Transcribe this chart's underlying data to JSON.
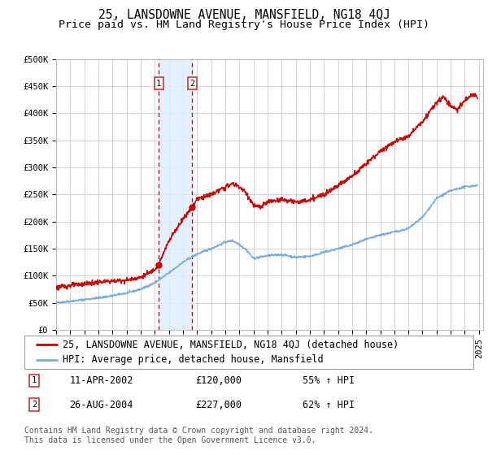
{
  "title": "25, LANSDOWNE AVENUE, MANSFIELD, NG18 4QJ",
  "subtitle": "Price paid vs. HM Land Registry's House Price Index (HPI)",
  "ylim": [
    0,
    500000
  ],
  "yticks": [
    0,
    50000,
    100000,
    150000,
    200000,
    250000,
    300000,
    350000,
    400000,
    450000,
    500000
  ],
  "ytick_labels": [
    "£0",
    "£50K",
    "£100K",
    "£150K",
    "£200K",
    "£250K",
    "£300K",
    "£350K",
    "£400K",
    "£450K",
    "£500K"
  ],
  "xlim_start": 1995.0,
  "xlim_end": 2025.3,
  "xticks": [
    1995,
    1996,
    1997,
    1998,
    1999,
    2000,
    2001,
    2002,
    2003,
    2004,
    2005,
    2006,
    2007,
    2008,
    2009,
    2010,
    2011,
    2012,
    2013,
    2014,
    2015,
    2016,
    2017,
    2018,
    2019,
    2020,
    2021,
    2022,
    2023,
    2024,
    2025
  ],
  "background_color": "#ffffff",
  "grid_color": "#cccccc",
  "sale_color": "#cc0000",
  "hpi_color": "#7aaddd",
  "sale_label": "25, LANSDOWNE AVENUE, MANSFIELD, NG18 4QJ (detached house)",
  "hpi_label": "HPI: Average price, detached house, Mansfield",
  "transaction1_date": 2002.278,
  "transaction1_price": 120000,
  "transaction1_label": "11-APR-2002",
  "transaction1_pct": "55% ↑ HPI",
  "transaction2_date": 2004.653,
  "transaction2_price": 227000,
  "transaction2_label": "26-AUG-2004",
  "transaction2_pct": "62% ↑ HPI",
  "shade_color": "#ddeeff",
  "copyright_text": "Contains HM Land Registry data © Crown copyright and database right 2024.\nThis data is licensed under the Open Government Licence v3.0.",
  "title_fontsize": 10.5,
  "subtitle_fontsize": 9.5,
  "tick_fontsize": 7.5,
  "legend_fontsize": 8.5,
  "table_fontsize": 8.5,
  "footer_fontsize": 7.0
}
